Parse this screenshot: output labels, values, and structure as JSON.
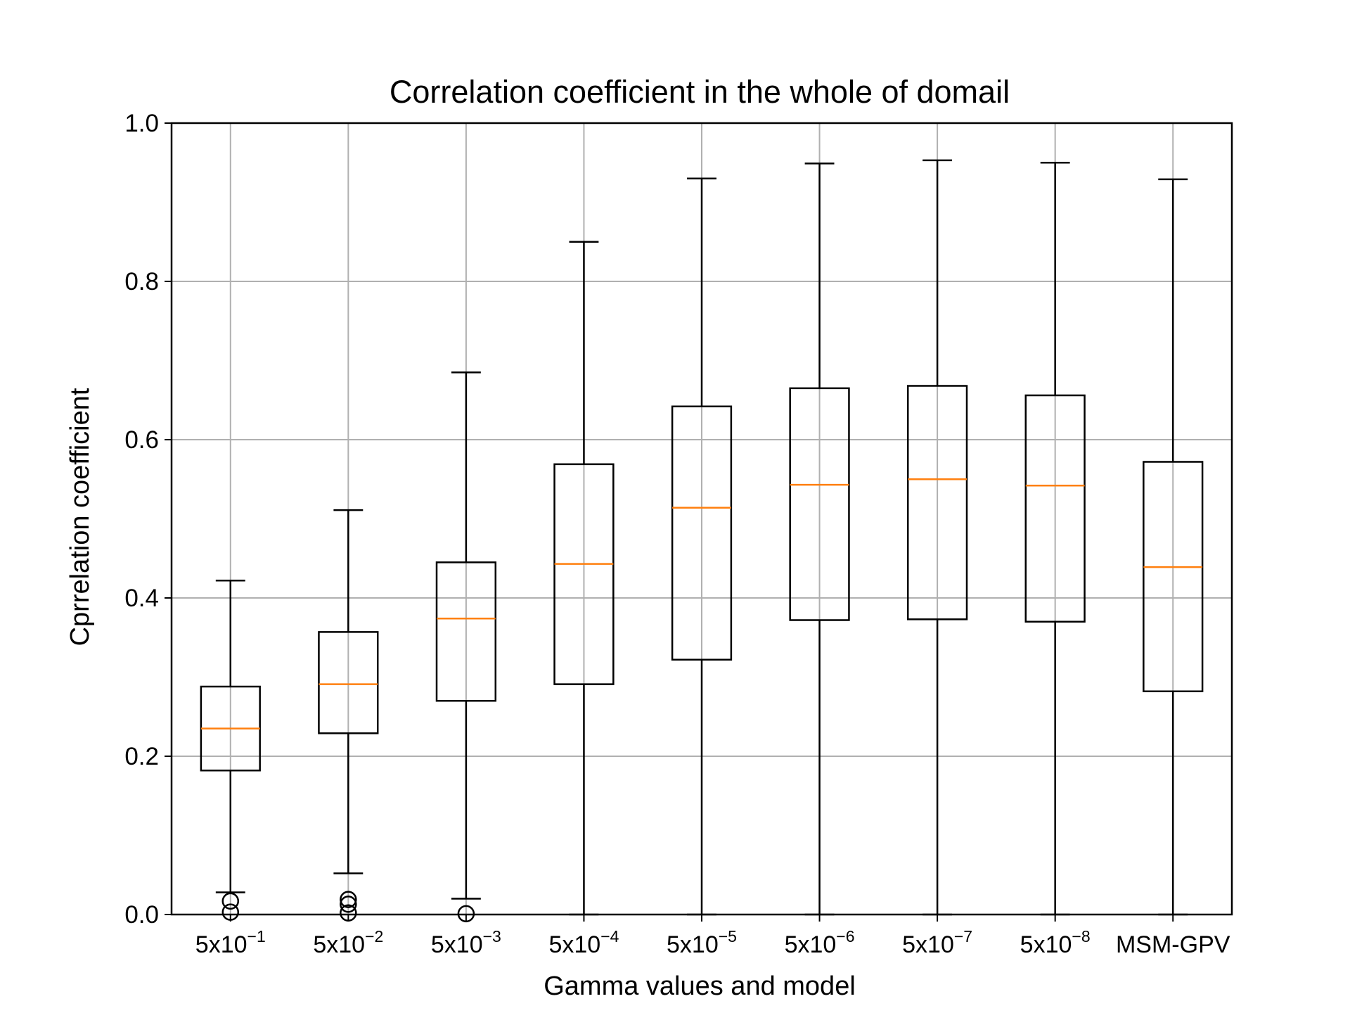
{
  "chart_data": {
    "type": "box",
    "title": "Correlation coefficient in the whole of domail",
    "xlabel": "Gamma values and model",
    "ylabel": "Cprrelation coefficient",
    "ylim": [
      0.0,
      1.0
    ],
    "yticks": [
      "0.0",
      "0.2",
      "0.4",
      "0.6",
      "0.8",
      "1.0"
    ],
    "grid": true,
    "categories": [
      {
        "base": "5x10",
        "exp": "−1"
      },
      {
        "base": "5x10",
        "exp": "−2"
      },
      {
        "base": "5x10",
        "exp": "−3"
      },
      {
        "base": "5x10",
        "exp": "−4"
      },
      {
        "base": "5x10",
        "exp": "−5"
      },
      {
        "base": "5x10",
        "exp": "−6"
      },
      {
        "base": "5x10",
        "exp": "−7"
      },
      {
        "base": "5x10",
        "exp": "−8"
      },
      {
        "base": "MSM-GPV",
        "exp": ""
      }
    ],
    "boxes": [
      {
        "whisker_low": 0.028,
        "q1": 0.182,
        "median": 0.235,
        "q3": 0.288,
        "whisker_high": 0.422,
        "outliers": [
          0.017,
          0.003
        ]
      },
      {
        "whisker_low": 0.052,
        "q1": 0.229,
        "median": 0.291,
        "q3": 0.357,
        "whisker_high": 0.511,
        "outliers": [
          0.019,
          0.013,
          0.002
        ]
      },
      {
        "whisker_low": 0.02,
        "q1": 0.27,
        "median": 0.374,
        "q3": 0.445,
        "whisker_high": 0.685,
        "outliers": [
          0.001
        ]
      },
      {
        "whisker_low": 0.0,
        "q1": 0.291,
        "median": 0.443,
        "q3": 0.569,
        "whisker_high": 0.85,
        "outliers": []
      },
      {
        "whisker_low": 0.0,
        "q1": 0.322,
        "median": 0.514,
        "q3": 0.642,
        "whisker_high": 0.93,
        "outliers": []
      },
      {
        "whisker_low": 0.0,
        "q1": 0.372,
        "median": 0.543,
        "q3": 0.665,
        "whisker_high": 0.949,
        "outliers": []
      },
      {
        "whisker_low": 0.0,
        "q1": 0.373,
        "median": 0.55,
        "q3": 0.668,
        "whisker_high": 0.953,
        "outliers": []
      },
      {
        "whisker_low": 0.0,
        "q1": 0.37,
        "median": 0.542,
        "q3": 0.656,
        "whisker_high": 0.95,
        "outliers": []
      },
      {
        "whisker_low": 0.0,
        "q1": 0.282,
        "median": 0.439,
        "q3": 0.572,
        "whisker_high": 0.929,
        "outliers": []
      }
    ],
    "colors": {
      "box": "#000000",
      "median": "#ff7f0e",
      "grid": "#b0b0b0"
    }
  }
}
